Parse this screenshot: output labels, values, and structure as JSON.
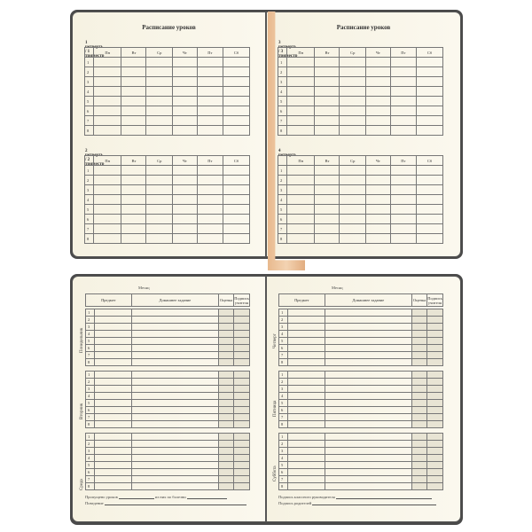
{
  "schedule": {
    "title": "Расписание уроков",
    "days": [
      "Пн",
      "Вт",
      "Ср",
      "Чт",
      "Пт",
      "Сб"
    ],
    "rows": [
      "1",
      "2",
      "3",
      "4",
      "5",
      "6",
      "7",
      "8"
    ],
    "labels": [
      "1 четверть  /  1 триместр",
      "2 четверть  /  2 триместр",
      "3 четверть  /  3 триместр",
      "4 четверть"
    ]
  },
  "diary": {
    "month": "Месяц",
    "headers": [
      "Предмет",
      "Домашнее задание",
      "Оценка",
      "Подпись учителя"
    ],
    "days_left": [
      "Понедельник",
      "Вторник",
      "Среда"
    ],
    "days_right": [
      "Четверг",
      "Пятница",
      "Суббота"
    ],
    "missed": "Пропущено уроков",
    "sick": "из них по болезни",
    "behavior": "Поведение",
    "teacher_sign": "Подпись классного руководителя",
    "parent_sign": "Подпись родителей"
  },
  "colors": {
    "paper": "#f8f4e6",
    "cover": "#4a4a4a",
    "ribbon": "#f0c9a4"
  }
}
